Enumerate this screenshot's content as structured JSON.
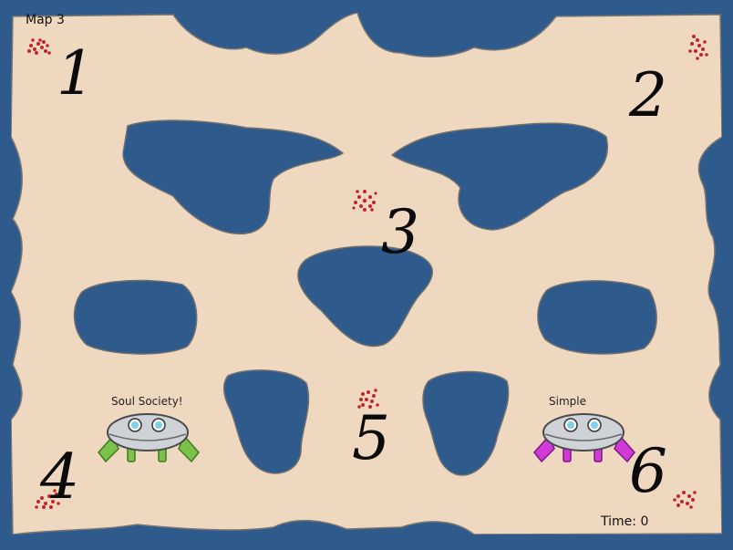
{
  "hud": {
    "map_title": "Map 3",
    "timer_label": "Time:",
    "timer_value": "0"
  },
  "spawn_points": [
    {
      "number": "1"
    },
    {
      "number": "2"
    },
    {
      "number": "3"
    },
    {
      "number": "4"
    },
    {
      "number": "5"
    },
    {
      "number": "6"
    }
  ],
  "players": [
    {
      "name": "Soul Society!",
      "wing_color": "#7cc24a",
      "wing_edge": "#3f7a1f"
    },
    {
      "name": "Simple",
      "wing_color": "#d23ad8",
      "wing_edge": "#7a1a80"
    }
  ],
  "colors": {
    "water": "#2f5a8c",
    "sand": "#f3dcc2",
    "shore": "#6f6f6f",
    "resource": "#c0262a"
  }
}
